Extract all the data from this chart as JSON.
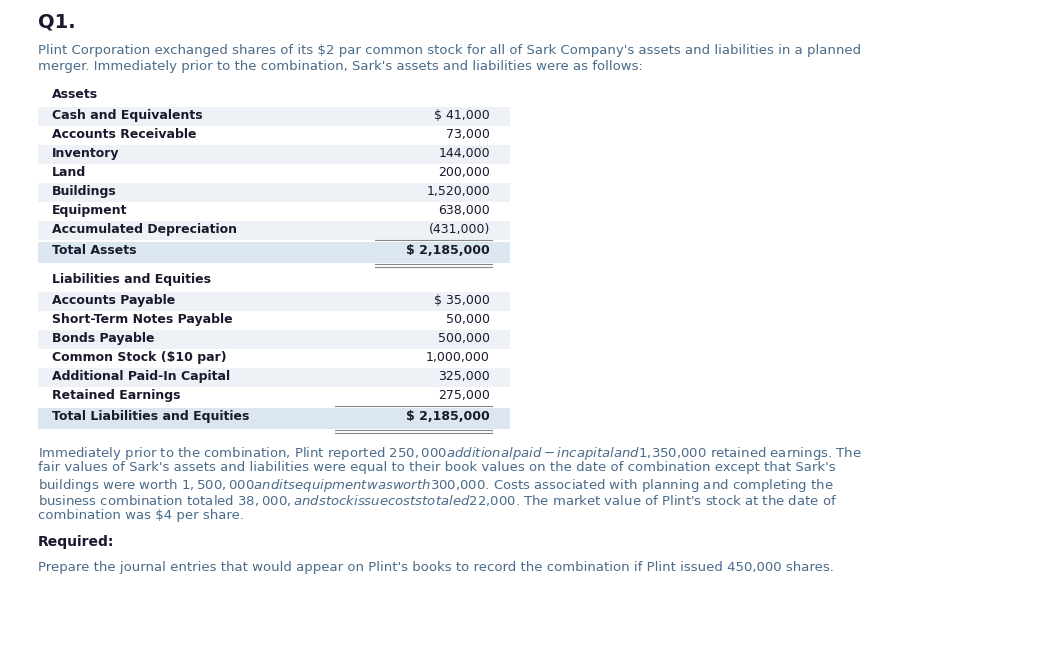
{
  "title": "Q1.",
  "intro_line1": "Plint Corporation exchanged shares of its $2 par common stock for all of Sark Company's assets and liabilities in a planned",
  "intro_line2": "merger. Immediately prior to the combination, Sark's assets and liabilities were as follows:",
  "assets_header": "Assets",
  "assets_rows": [
    [
      "Cash and Equivalents",
      "$ 41,000"
    ],
    [
      "Accounts Receivable",
      "73,000"
    ],
    [
      "Inventory",
      "144,000"
    ],
    [
      "Land",
      "200,000"
    ],
    [
      "Buildings",
      "1,520,000"
    ],
    [
      "Equipment",
      "638,000"
    ],
    [
      "Accumulated Depreciation",
      "(431,000)"
    ]
  ],
  "assets_total_label": "Total Assets",
  "assets_total_value": "$ 2,185,000",
  "liabilities_header": "Liabilities and Equities",
  "liabilities_rows": [
    [
      "Accounts Payable",
      "$ 35,000"
    ],
    [
      "Short-Term Notes Payable",
      "50,000"
    ],
    [
      "Bonds Payable",
      "500,000"
    ],
    [
      "Common Stock ($10 par)",
      "1,000,000"
    ],
    [
      "Additional Paid-In Capital",
      "325,000"
    ],
    [
      "Retained Earnings",
      "275,000"
    ]
  ],
  "liabilities_total_label": "Total Liabilities and Equities",
  "liabilities_total_value": "$ 2,185,000",
  "middle_line1": "Immediately prior to the combination, Plint reported $250,000 additional paid-in capital and $1,350,000 retained earnings. The",
  "middle_line2": "fair values of Sark's assets and liabilities were equal to their book values on the date of combination except that Sark's",
  "middle_line3": "buildings were worth $1,500,000 and its equipment was worth $300,000. Costs associated with planning and completing the",
  "middle_line4": "business combination totaled $38,000, and stock issue costs totaled $22,000. The market value of Plint's stock at the date of",
  "middle_line5": "combination was $4 per share.",
  "required_label": "Required:",
  "required_text": "Prepare the journal entries that would appear on Plint's books to record the combination if Plint issued 450,000 shares.",
  "bg_color": "#ffffff",
  "text_color": "#4a6b8a",
  "dark_color": "#1a1a2e",
  "row_alt_color": "#eef2f7",
  "row_normal_color": "#ffffff",
  "total_row_color": "#dce6f0",
  "line_color": "#888888"
}
